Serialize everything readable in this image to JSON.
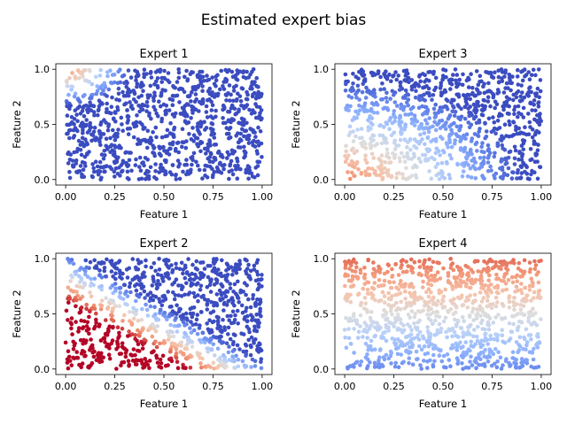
{
  "figure": {
    "title": "Estimated expert bias"
  },
  "chart_data": [
    {
      "type": "scatter",
      "title": "Expert 1",
      "xlabel": "Feature 1",
      "ylabel": "Feature 2",
      "xlim": [
        0,
        1
      ],
      "ylim": [
        0,
        1
      ],
      "xticks": [
        "0.00",
        "0.25",
        "0.50",
        "0.75",
        "1.00"
      ],
      "yticks": [
        "0.0",
        "0.5",
        "1.0"
      ],
      "colormap": "coolwarm",
      "grid": false,
      "bias": {
        "kind": "corner-radial",
        "cx": 0.0,
        "cy": 1.0,
        "radius": 0.33,
        "peak": 0.8,
        "low": 0.0
      },
      "num_points": 1000
    },
    {
      "type": "scatter",
      "title": "Expert 3",
      "xlabel": "Feature 1",
      "ylabel": "Feature 2",
      "xlim": [
        0,
        1
      ],
      "ylim": [
        0,
        1
      ],
      "xticks": [
        "0.00",
        "0.25",
        "0.50",
        "0.75",
        "1.00"
      ],
      "yticks": [
        "0.0",
        "0.5",
        "1.0"
      ],
      "colormap": "coolwarm",
      "grid": false,
      "bias": {
        "kind": "corner-radial",
        "cx": 0.0,
        "cy": 0.0,
        "radius": 0.9,
        "peak": 0.8,
        "low": 0.0
      },
      "num_points": 1000
    },
    {
      "type": "scatter",
      "title": "Expert 2",
      "xlabel": "Feature 1",
      "ylabel": "Feature 2",
      "xlim": [
        0,
        1
      ],
      "ylim": [
        0,
        1
      ],
      "xticks": [
        "0.00",
        "0.25",
        "0.50",
        "0.75",
        "1.00"
      ],
      "yticks": [
        "0.0",
        "0.5",
        "1.0"
      ],
      "colormap": "coolwarm",
      "grid": false,
      "bias": {
        "kind": "diagonal",
        "boundary": 1.0,
        "peak": 1.0,
        "low": 0.0
      },
      "num_points": 1000
    },
    {
      "type": "scatter",
      "title": "Expert 4",
      "xlabel": "Feature 1",
      "ylabel": "Feature 2",
      "xlim": [
        0,
        1
      ],
      "ylim": [
        0,
        1
      ],
      "xticks": [
        "0.00",
        "0.25",
        "0.50",
        "0.75",
        "1.00"
      ],
      "yticks": [
        "0.0",
        "0.5",
        "1.0"
      ],
      "colormap": "coolwarm",
      "grid": false,
      "bias": {
        "kind": "vertical",
        "bottom": 0.15,
        "top": 0.85
      },
      "num_points": 1000
    }
  ]
}
